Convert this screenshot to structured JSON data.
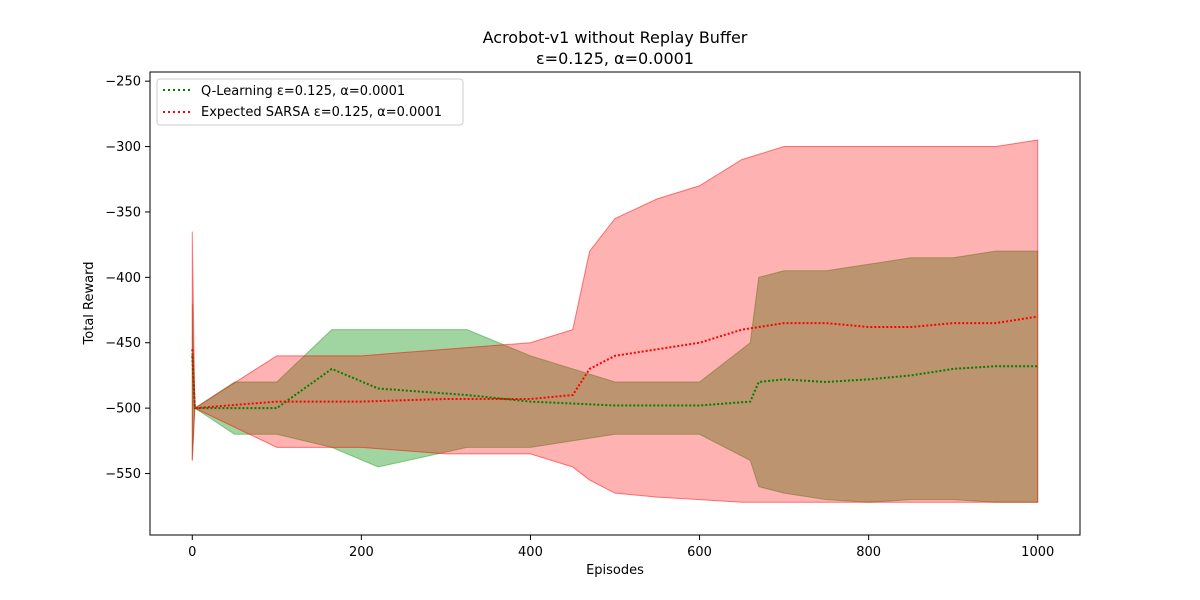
{
  "chart_data": {
    "type": "line",
    "title": "Acrobot-v1 without Replay Buffer",
    "subtitle": "ε=0.125, α=0.0001",
    "xlabel": "Episodes",
    "ylabel": "Total Reward",
    "xlim": [
      -50,
      1050
    ],
    "ylim": [
      -597,
      -243
    ],
    "xticks": [
      0,
      200,
      400,
      600,
      800,
      1000
    ],
    "yticks": [
      -550,
      -500,
      -450,
      -400,
      -350,
      -300,
      -250
    ],
    "grid": false,
    "legend_position": "top-left",
    "series": [
      {
        "name": "Q-Learning ε=0.125, α=0.0001",
        "color": "#008000",
        "line_style": "dotted",
        "band_color": "#2ca02c",
        "points": [
          {
            "x": 0,
            "mean": -460,
            "upper": -420,
            "lower": -540
          },
          {
            "x": 3,
            "mean": -500,
            "upper": -500,
            "lower": -500
          },
          {
            "x": 50,
            "mean": -500,
            "upper": -480,
            "lower": -520
          },
          {
            "x": 100,
            "mean": -500,
            "upper": -480,
            "lower": -520
          },
          {
            "x": 165,
            "mean": -470,
            "upper": -440,
            "lower": -530
          },
          {
            "x": 220,
            "mean": -485,
            "upper": -440,
            "lower": -545
          },
          {
            "x": 325,
            "mean": -490,
            "upper": -440,
            "lower": -530
          },
          {
            "x": 400,
            "mean": -495,
            "upper": -460,
            "lower": -530
          },
          {
            "x": 500,
            "mean": -498,
            "upper": -480,
            "lower": -520
          },
          {
            "x": 600,
            "mean": -498,
            "upper": -480,
            "lower": -520
          },
          {
            "x": 660,
            "mean": -495,
            "upper": -450,
            "lower": -540
          },
          {
            "x": 670,
            "mean": -480,
            "upper": -400,
            "lower": -560
          },
          {
            "x": 700,
            "mean": -478,
            "upper": -395,
            "lower": -565
          },
          {
            "x": 750,
            "mean": -480,
            "upper": -395,
            "lower": -570
          },
          {
            "x": 800,
            "mean": -478,
            "upper": -390,
            "lower": -572
          },
          {
            "x": 850,
            "mean": -475,
            "upper": -385,
            "lower": -570
          },
          {
            "x": 900,
            "mean": -470,
            "upper": -385,
            "lower": -570
          },
          {
            "x": 950,
            "mean": -468,
            "upper": -380,
            "lower": -572
          },
          {
            "x": 1000,
            "mean": -468,
            "upper": -380,
            "lower": -572
          }
        ]
      },
      {
        "name": "Expected SARSA ε=0.125, α=0.0001",
        "color": "#ff0000",
        "line_style": "dotted",
        "band_color": "#ff0000",
        "points": [
          {
            "x": 0,
            "mean": -455,
            "upper": -365,
            "lower": -540
          },
          {
            "x": 3,
            "mean": -500,
            "upper": -500,
            "lower": -500
          },
          {
            "x": 100,
            "mean": -495,
            "upper": -460,
            "lower": -530
          },
          {
            "x": 200,
            "mean": -495,
            "upper": -460,
            "lower": -530
          },
          {
            "x": 300,
            "mean": -493,
            "upper": -455,
            "lower": -535
          },
          {
            "x": 400,
            "mean": -493,
            "upper": -450,
            "lower": -535
          },
          {
            "x": 450,
            "mean": -490,
            "upper": -440,
            "lower": -545
          },
          {
            "x": 470,
            "mean": -470,
            "upper": -380,
            "lower": -555
          },
          {
            "x": 500,
            "mean": -460,
            "upper": -355,
            "lower": -565
          },
          {
            "x": 550,
            "mean": -455,
            "upper": -340,
            "lower": -568
          },
          {
            "x": 600,
            "mean": -450,
            "upper": -330,
            "lower": -570
          },
          {
            "x": 650,
            "mean": -440,
            "upper": -310,
            "lower": -572
          },
          {
            "x": 700,
            "mean": -435,
            "upper": -300,
            "lower": -572
          },
          {
            "x": 750,
            "mean": -435,
            "upper": -300,
            "lower": -572
          },
          {
            "x": 800,
            "mean": -438,
            "upper": -300,
            "lower": -572
          },
          {
            "x": 850,
            "mean": -438,
            "upper": -300,
            "lower": -572
          },
          {
            "x": 900,
            "mean": -435,
            "upper": -300,
            "lower": -572
          },
          {
            "x": 950,
            "mean": -435,
            "upper": -300,
            "lower": -572
          },
          {
            "x": 1000,
            "mean": -430,
            "upper": -295,
            "lower": -572
          }
        ]
      }
    ]
  }
}
